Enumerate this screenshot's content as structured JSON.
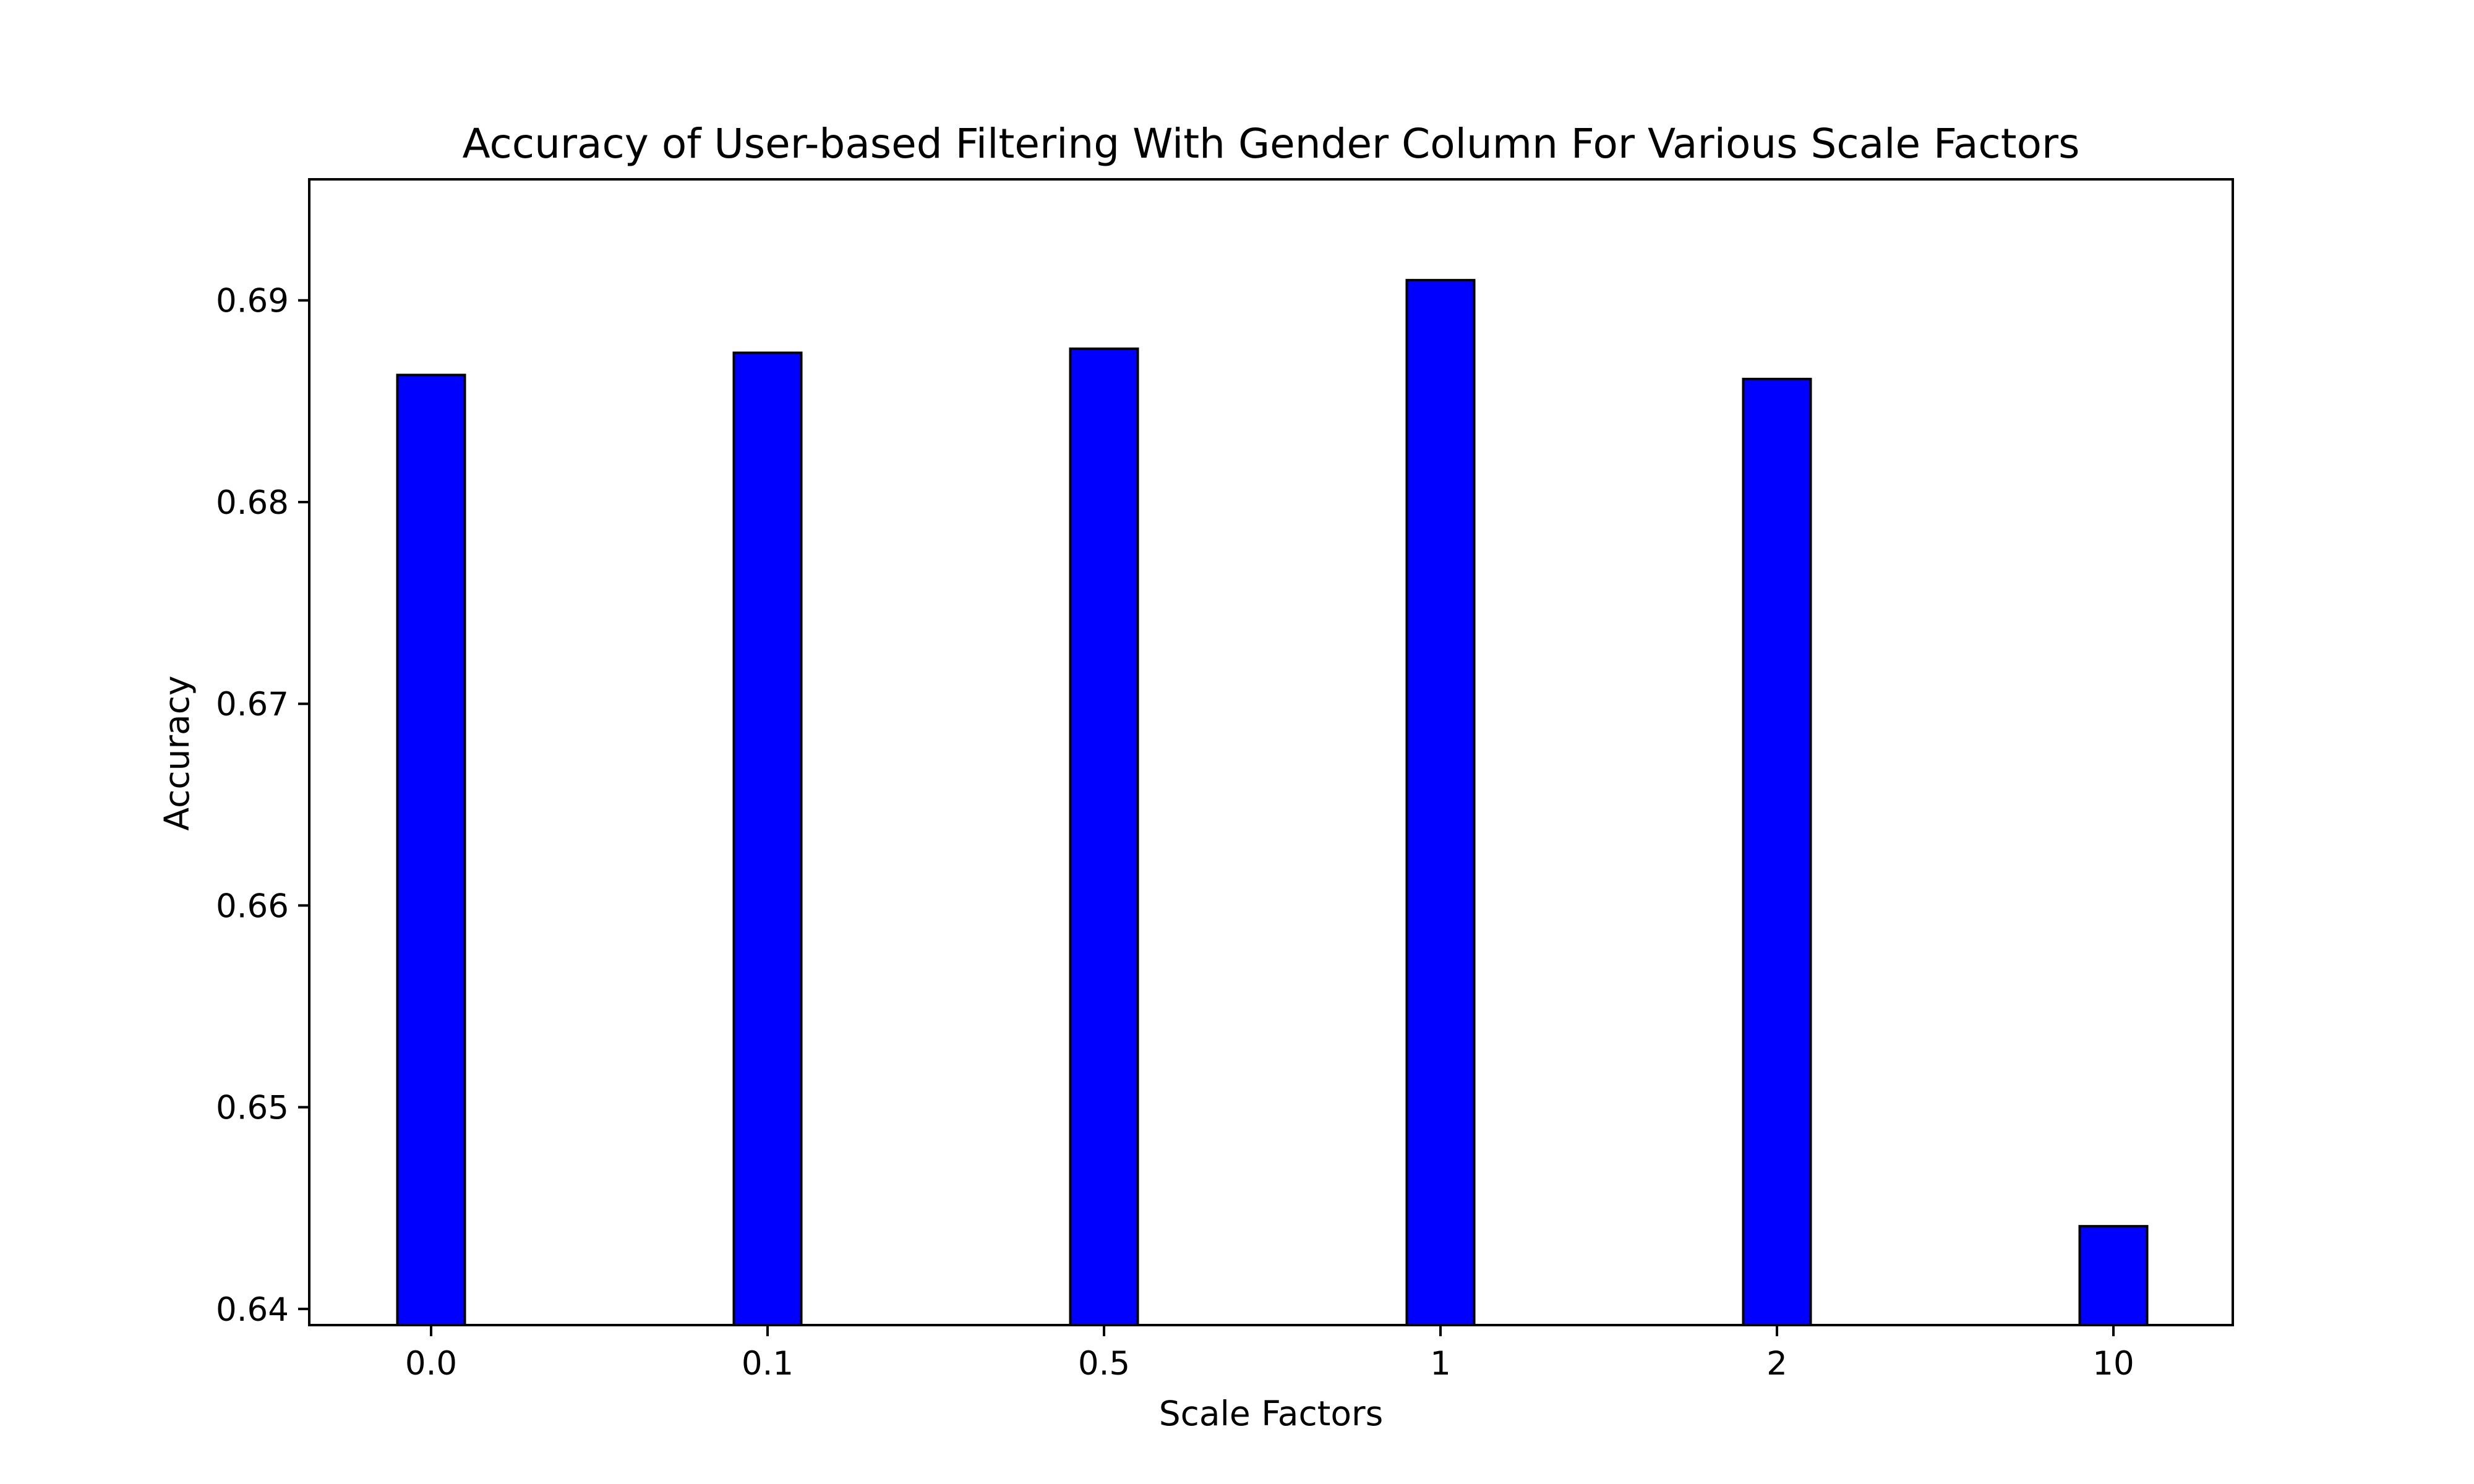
{
  "chart_data": {
    "type": "bar",
    "title": "Accuracy of User-based Filtering With Gender Column For Various Scale Factors",
    "xlabel": "Scale Factors",
    "ylabel": "Accuracy",
    "categories": [
      "0.0",
      "0.1",
      "0.5",
      "1",
      "2",
      "10"
    ],
    "values": [
      0.6863,
      0.6874,
      0.6876,
      0.691,
      0.6861,
      0.6441
    ],
    "ylim": [
      0.6392,
      0.696
    ],
    "yticks": [
      "0.64",
      "0.65",
      "0.66",
      "0.67",
      "0.68",
      "0.69"
    ],
    "grid": false,
    "legend": "none",
    "bar_color": "#0000ff",
    "edge_color": "#000000"
  }
}
